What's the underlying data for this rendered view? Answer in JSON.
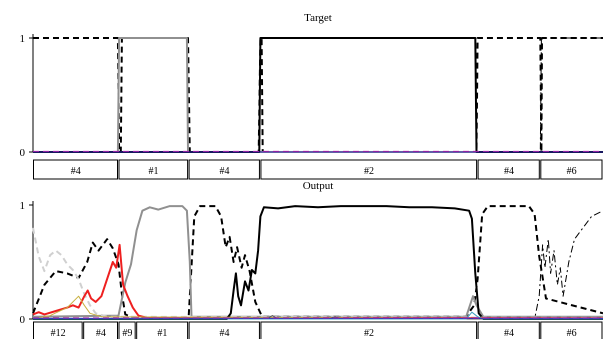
{
  "chart_data": [
    {
      "type": "line",
      "title": "Target",
      "xlabel": "",
      "ylabel": "",
      "xlim": [
        0,
        1000
      ],
      "ylim": [
        0,
        1
      ],
      "yticks": [
        0,
        1
      ],
      "grid": false,
      "segments": [
        {
          "label": "#4",
          "start": 0,
          "end": 150
        },
        {
          "label": "#1",
          "start": 150,
          "end": 273
        },
        {
          "label": "#4",
          "start": 273,
          "end": 399
        },
        {
          "label": "#2",
          "start": 399,
          "end": 780
        },
        {
          "label": "#4",
          "start": 780,
          "end": 890
        },
        {
          "label": "#6",
          "start": 890,
          "end": 1000
        }
      ],
      "series": [
        {
          "style": "dashed",
          "color": "#000000",
          "width": 2,
          "points": [
            [
              0,
              1
            ],
            [
              149,
              1
            ],
            [
              151,
              0
            ],
            [
              154,
              0
            ],
            [
              156,
              1
            ],
            [
              272,
              1
            ],
            [
              275,
              0
            ],
            [
              396,
              0
            ],
            [
              399,
              1
            ],
            [
              401,
              1
            ],
            [
              403,
              0
            ],
            [
              778,
              0
            ],
            [
              780,
              1
            ],
            [
              890,
              1
            ],
            [
              892,
              0
            ],
            [
              893,
              1
            ],
            [
              1000,
              1
            ]
          ]
        },
        {
          "style": "solid",
          "color": "#909090",
          "width": 2,
          "points": [
            [
              0,
              0
            ],
            [
              149,
              0
            ],
            [
              151,
              1
            ],
            [
              270,
              1
            ],
            [
              272,
              0
            ],
            [
              1000,
              0
            ]
          ]
        },
        {
          "style": "solid",
          "color": "#000000",
          "width": 2,
          "points": [
            [
              0,
              0
            ],
            [
              397,
              0
            ],
            [
              399,
              1
            ],
            [
              776,
              1
            ],
            [
              778,
              0
            ],
            [
              1000,
              0
            ]
          ]
        },
        {
          "style": "dashdot",
          "color": "#000000",
          "width": 1,
          "points": [
            [
              0,
              0
            ],
            [
              890,
              0
            ],
            [
              892,
              1
            ],
            [
              1000,
              1
            ]
          ]
        },
        {
          "style": "solid",
          "color": "#3030c0",
          "width": 1,
          "points": [
            [
              0,
              0
            ],
            [
              1000,
              0
            ]
          ]
        },
        {
          "style": "dashed",
          "color": "#a020a0",
          "width": 1,
          "points": [
            [
              0,
              0.005
            ],
            [
              1000,
              0.005
            ]
          ]
        }
      ]
    },
    {
      "type": "line",
      "title": "Output",
      "xlabel": "",
      "ylabel": "",
      "xlim": [
        0,
        1000
      ],
      "ylim": [
        0,
        1
      ],
      "yticks": [
        0,
        1
      ],
      "grid": false,
      "segments": [
        {
          "label": "#12",
          "start": 0,
          "end": 88
        },
        {
          "label": "#4",
          "start": 88,
          "end": 150
        },
        {
          "label": "#9",
          "start": 150,
          "end": 181
        },
        {
          "label": "#1",
          "start": 181,
          "end": 273
        },
        {
          "label": "#4",
          "start": 273,
          "end": 399
        },
        {
          "label": "#2",
          "start": 399,
          "end": 780
        },
        {
          "label": "#4",
          "start": 780,
          "end": 890
        },
        {
          "label": "#6",
          "start": 890,
          "end": 1000
        }
      ],
      "series": [
        {
          "style": "dashed",
          "color": "#000000",
          "width": 2,
          "points": [
            [
              0,
              0.05
            ],
            [
              20,
              0.3
            ],
            [
              40,
              0.42
            ],
            [
              60,
              0.4
            ],
            [
              80,
              0.36
            ],
            [
              95,
              0.5
            ],
            [
              105,
              0.67
            ],
            [
              115,
              0.6
            ],
            [
              130,
              0.7
            ],
            [
              140,
              0.62
            ],
            [
              150,
              0.48
            ],
            [
              156,
              0.22
            ],
            [
              162,
              0.04
            ],
            [
              175,
              0.01
            ],
            [
              273,
              0.01
            ],
            [
              283,
              0.9
            ],
            [
              293,
              0.99
            ],
            [
              320,
              0.99
            ],
            [
              330,
              0.9
            ],
            [
              338,
              0.63
            ],
            [
              345,
              0.72
            ],
            [
              352,
              0.5
            ],
            [
              358,
              0.63
            ],
            [
              366,
              0.45
            ],
            [
              372,
              0.56
            ],
            [
              380,
              0.42
            ],
            [
              390,
              0.15
            ],
            [
              402,
              0.02
            ],
            [
              760,
              0.02
            ],
            [
              768,
              0.08
            ],
            [
              774,
              0.12
            ],
            [
              780,
              0.35
            ],
            [
              788,
              0.92
            ],
            [
              798,
              0.99
            ],
            [
              870,
              0.99
            ],
            [
              880,
              0.92
            ],
            [
              888,
              0.55
            ],
            [
              900,
              0.18
            ],
            [
              1000,
              0.05
            ]
          ]
        },
        {
          "style": "solid",
          "color": "#909090",
          "width": 2,
          "points": [
            [
              0,
              0.02
            ],
            [
              150,
              0.03
            ],
            [
              162,
              0.32
            ],
            [
              172,
              0.48
            ],
            [
              182,
              0.78
            ],
            [
              192,
              0.95
            ],
            [
              205,
              0.98
            ],
            [
              220,
              0.96
            ],
            [
              240,
              0.99
            ],
            [
              262,
              0.99
            ],
            [
              270,
              0.95
            ],
            [
              275,
              0.5
            ],
            [
              278,
              0.02
            ],
            [
              760,
              0.02
            ],
            [
              772,
              0.2
            ],
            [
              778,
              0.12
            ],
            [
              790,
              0.02
            ],
            [
              1000,
              0.02
            ]
          ]
        },
        {
          "style": "solid",
          "color": "#000000",
          "width": 2,
          "points": [
            [
              0,
              0
            ],
            [
              340,
              0
            ],
            [
              347,
              0.05
            ],
            [
              352,
              0.25
            ],
            [
              356,
              0.4
            ],
            [
              360,
              0.2
            ],
            [
              365,
              0.12
            ],
            [
              372,
              0.33
            ],
            [
              378,
              0.25
            ],
            [
              384,
              0.43
            ],
            [
              390,
              0.4
            ],
            [
              395,
              0.6
            ],
            [
              399,
              0.9
            ],
            [
              405,
              0.98
            ],
            [
              430,
              0.97
            ],
            [
              460,
              0.99
            ],
            [
              500,
              0.98
            ],
            [
              540,
              0.99
            ],
            [
              580,
              0.99
            ],
            [
              620,
              0.99
            ],
            [
              660,
              0.98
            ],
            [
              700,
              0.98
            ],
            [
              740,
              0.97
            ],
            [
              765,
              0.95
            ],
            [
              770,
              0.88
            ],
            [
              776,
              0.4
            ],
            [
              782,
              0.05
            ],
            [
              790,
              0
            ],
            [
              1000,
              0
            ]
          ]
        },
        {
          "style": "dashdot",
          "color": "#000000",
          "width": 1,
          "points": [
            [
              0,
              0
            ],
            [
              880,
              0
            ],
            [
              888,
              0.2
            ],
            [
              894,
              0.65
            ],
            [
              898,
              0.45
            ],
            [
              904,
              0.7
            ],
            [
              908,
              0.4
            ],
            [
              914,
              0.6
            ],
            [
              920,
              0.3
            ],
            [
              925,
              0.45
            ],
            [
              930,
              0.2
            ],
            [
              940,
              0.5
            ],
            [
              950,
              0.7
            ],
            [
              965,
              0.8
            ],
            [
              980,
              0.9
            ],
            [
              1000,
              0.95
            ]
          ]
        },
        {
          "style": "dashed",
          "color": "#d0d0d0",
          "width": 2,
          "points": [
            [
              0,
              0.8
            ],
            [
              10,
              0.55
            ],
            [
              20,
              0.42
            ],
            [
              30,
              0.56
            ],
            [
              40,
              0.6
            ],
            [
              50,
              0.56
            ],
            [
              60,
              0.48
            ],
            [
              70,
              0.43
            ],
            [
              80,
              0.35
            ],
            [
              90,
              0.22
            ],
            [
              100,
              0.12
            ],
            [
              110,
              0.05
            ],
            [
              130,
              0.02
            ],
            [
              1000,
              0.01
            ]
          ]
        },
        {
          "style": "solid",
          "color": "#ee2020",
          "width": 2,
          "points": [
            [
              0,
              0.04
            ],
            [
              10,
              0.06
            ],
            [
              20,
              0.04
            ],
            [
              40,
              0.07
            ],
            [
              60,
              0.1
            ],
            [
              70,
              0.12
            ],
            [
              80,
              0.1
            ],
            [
              90,
              0.2
            ],
            [
              96,
              0.25
            ],
            [
              102,
              0.18
            ],
            [
              110,
              0.15
            ],
            [
              120,
              0.2
            ],
            [
              130,
              0.35
            ],
            [
              140,
              0.5
            ],
            [
              146,
              0.45
            ],
            [
              152,
              0.65
            ],
            [
              158,
              0.3
            ],
            [
              166,
              0.2
            ],
            [
              175,
              0.1
            ],
            [
              185,
              0.03
            ],
            [
              200,
              0.01
            ],
            [
              1000,
              0.005
            ]
          ]
        },
        {
          "style": "solid",
          "color": "#c8b040",
          "width": 1,
          "points": [
            [
              0,
              0
            ],
            [
              30,
              0.03
            ],
            [
              60,
              0.1
            ],
            [
              80,
              0.2
            ],
            [
              90,
              0.12
            ],
            [
              100,
              0.05
            ],
            [
              120,
              0.02
            ],
            [
              1000,
              0
            ]
          ]
        },
        {
          "style": "solid",
          "color": "#555555",
          "width": 1,
          "points": [
            [
              0,
              0
            ],
            [
              410,
              0
            ],
            [
              420,
              0.03
            ],
            [
              430,
              0
            ],
            [
              520,
              0
            ],
            [
              530,
              0.02
            ],
            [
              540,
              0
            ],
            [
              1000,
              0
            ]
          ]
        },
        {
          "style": "solid",
          "color": "#40a0c0",
          "width": 1,
          "points": [
            [
              0,
              0
            ],
            [
              760,
              0
            ],
            [
              770,
              0.06
            ],
            [
              780,
              0.02
            ],
            [
              790,
              0
            ],
            [
              1000,
              0
            ]
          ]
        },
        {
          "style": "solid",
          "color": "#3030c0",
          "width": 1,
          "points": [
            [
              0,
              0.005
            ],
            [
              1000,
              0.005
            ]
          ]
        },
        {
          "style": "dashed",
          "color": "#a020a0",
          "width": 1,
          "points": [
            [
              0,
              0.01
            ],
            [
              1000,
              0.01
            ]
          ]
        }
      ]
    }
  ]
}
